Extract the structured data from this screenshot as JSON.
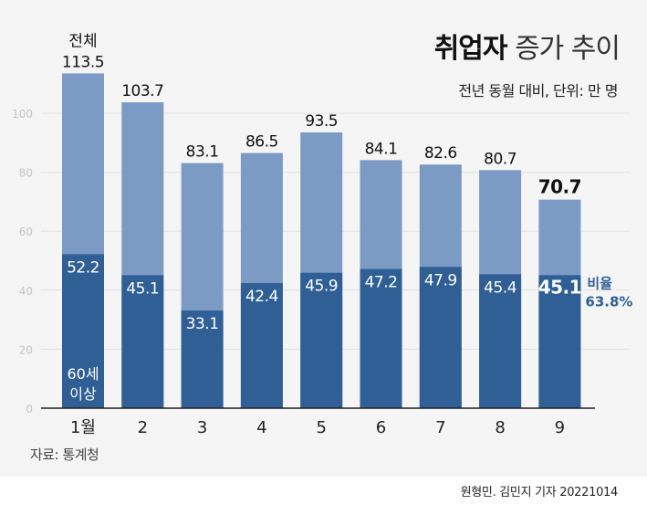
{
  "title_bold": "취업자",
  "title_light": "증가 추이",
  "subtitle": "전년 동월 대비, 단위: 만 명",
  "source": "자료: 통계청",
  "credit": "원형민. 김민지 기자  20221014",
  "colors": {
    "total": "#7b9bc4",
    "age60": "#2f5f94",
    "ratio_text": "#2f5f94"
  },
  "chart_data": {
    "type": "bar",
    "stacked_overlay": true,
    "categories": [
      "1월",
      "2",
      "3",
      "4",
      "5",
      "6",
      "7",
      "8",
      "9"
    ],
    "series": [
      {
        "name": "전체",
        "values": [
          113.5,
          103.7,
          83.1,
          86.5,
          93.5,
          84.1,
          82.6,
          80.7,
          70.7
        ]
      },
      {
        "name": "60세 이상",
        "values": [
          52.2,
          45.1,
          33.1,
          42.4,
          45.9,
          47.2,
          47.9,
          45.4,
          45.1
        ]
      }
    ],
    "series_labels": {
      "total": "전체",
      "age60_line1": "60세",
      "age60_line2": "이상"
    },
    "annotation": {
      "label": "비율",
      "value": "63.8%"
    },
    "yticks": [
      0,
      20,
      40,
      60,
      80,
      100
    ],
    "ylim": [
      0,
      120
    ],
    "grid": true
  }
}
